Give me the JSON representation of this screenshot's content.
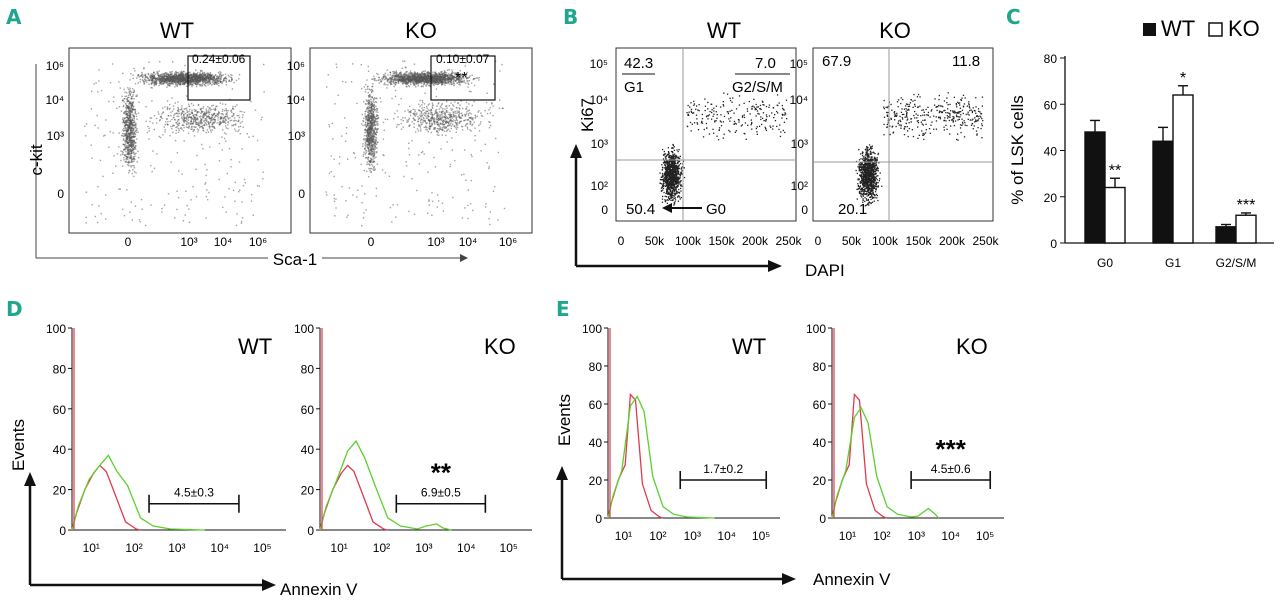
{
  "panel_letters": [
    "A",
    "B",
    "C",
    "D",
    "E"
  ],
  "colors": {
    "letter": "#1fa68f",
    "wt_line": "#e03a4e",
    "ko_line": "#5ecf2f",
    "dot": "#555555",
    "bar_wt": "#111111",
    "bar_ko": "#ffffff"
  },
  "chart_data": [
    {
      "panel": "A",
      "type": "scatter",
      "titles": [
        "WT",
        "KO"
      ],
      "xlabel": "Sca-1",
      "ylabel": "c-kit",
      "xticks": [
        "0",
        "10³",
        "10⁴",
        "10⁶"
      ],
      "yticks": [
        "10⁶",
        "10⁴",
        "10³",
        "0"
      ],
      "gate_labels": [
        "0.24±0.06",
        "0.10±0.07"
      ],
      "significance": [
        "",
        "**"
      ]
    },
    {
      "panel": "B",
      "type": "scatter",
      "titles": [
        "WT",
        "KO"
      ],
      "xlabel": "DAPI",
      "ylabel": "Ki67",
      "xticks": [
        "0",
        "50k",
        "100k",
        "150k",
        "200k",
        "250k"
      ],
      "yticks": [
        "10⁵",
        "10⁴",
        "10³",
        "10²",
        "0"
      ],
      "wt_quadrants": {
        "top_left": "42.3",
        "top_left_phase": "G1",
        "top_right": "7.0",
        "top_right_phase": "G2/S/M",
        "bottom_left": "50.4",
        "bottom_left_phase": "G0"
      },
      "ko_quadrants": {
        "top_left": "67.9",
        "top_right": "11.8",
        "bottom_left": "20.1"
      }
    },
    {
      "panel": "C",
      "type": "bar",
      "categories": [
        "G0",
        "G1",
        "G2/S/M"
      ],
      "series": [
        {
          "name": "WT",
          "values": [
            48,
            44,
            7
          ],
          "errors": [
            5,
            6,
            1
          ]
        },
        {
          "name": "KO",
          "values": [
            24,
            64,
            12
          ],
          "errors": [
            4,
            4,
            1
          ]
        }
      ],
      "significance": [
        "**",
        "*",
        "***"
      ],
      "ylabel": "% of LSK cells",
      "ylim": [
        0,
        80
      ],
      "yticks": [
        "0",
        "20",
        "40",
        "60",
        "80"
      ]
    },
    {
      "panel": "D",
      "type": "line",
      "titles": [
        "WT",
        "KO"
      ],
      "xlabel": "Annexin V",
      "ylabel": "Events",
      "ylim": [
        0,
        100
      ],
      "yticks": [
        "0",
        "20",
        "40",
        "60",
        "80",
        "100"
      ],
      "xticks": [
        "10¹",
        "10²",
        "10³",
        "10⁴",
        "10⁵"
      ],
      "gate_labels": [
        "4.5±0.3",
        "6.9±0.5"
      ],
      "significance": [
        "",
        "**"
      ]
    },
    {
      "panel": "E",
      "type": "line",
      "titles": [
        "WT",
        "KO"
      ],
      "xlabel": "Annexin V",
      "ylabel": "Events",
      "ylim": [
        0,
        100
      ],
      "yticks": [
        "0",
        "20",
        "40",
        "60",
        "80",
        "100"
      ],
      "xticks": [
        "10¹",
        "10²",
        "10³",
        "10⁴",
        "10⁵"
      ],
      "gate_labels": [
        "1.7±0.2",
        "4.5±0.6"
      ],
      "significance": [
        "",
        "***"
      ]
    }
  ]
}
